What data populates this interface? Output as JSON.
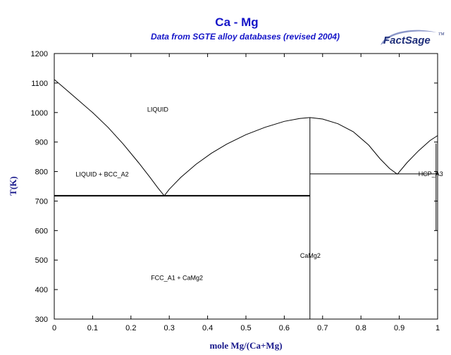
{
  "chart_data": {
    "type": "line",
    "title": "Ca - Mg",
    "subtitle": "Data from SGTE alloy databases (revised 2004)",
    "xlabel": "mole Mg/(Ca+Mg)",
    "ylabel": "T(K)",
    "xlim": [
      0,
      1
    ],
    "ylim": [
      300,
      1200
    ],
    "x_ticks": [
      0,
      0.1,
      0.2,
      0.3,
      0.4,
      0.5,
      0.6,
      0.7,
      0.8,
      0.9,
      1
    ],
    "x_tick_labels": [
      "0",
      "0.1",
      "0.2",
      "0.3",
      "0.4",
      "0.5",
      "0.6",
      "0.7",
      "0.8",
      "0.9",
      "1"
    ],
    "y_ticks": [
      300,
      400,
      500,
      600,
      700,
      800,
      900,
      1000,
      1100,
      1200
    ],
    "y_tick_labels": [
      "300",
      "400",
      "500",
      "600",
      "700",
      "800",
      "900",
      "1000",
      "1100",
      "1200"
    ],
    "grid": false,
    "series": [
      {
        "x": [
          0,
          0.02,
          0.06,
          0.1,
          0.14,
          0.18,
          0.22,
          0.25,
          0.27,
          0.287
        ],
        "y": [
          1112,
          1090,
          1045,
          1000,
          950,
          893,
          830,
          780,
          745,
          718
        ]
      },
      {
        "x": [
          0.287,
          0.3,
          0.33,
          0.37,
          0.41,
          0.45,
          0.5,
          0.55,
          0.6,
          0.64,
          0.667
        ],
        "y": [
          718,
          740,
          780,
          825,
          862,
          893,
          925,
          950,
          970,
          980,
          983
        ]
      },
      {
        "x": [
          0.667,
          0.7,
          0.74,
          0.78,
          0.82,
          0.85,
          0.875,
          0.895
        ],
        "y": [
          983,
          978,
          962,
          935,
          890,
          843,
          810,
          791
        ]
      },
      {
        "x": [
          0.895,
          0.92,
          0.95,
          0.98,
          1.0
        ],
        "y": [
          791,
          830,
          870,
          905,
          922
        ]
      },
      {
        "x": [
          0,
          0.667
        ],
        "y": [
          718,
          718
        ]
      },
      {
        "x": [
          0.667,
          0.667
        ],
        "y": [
          300,
          983
        ]
      },
      {
        "x": [
          0.667,
          1.0
        ],
        "y": [
          792,
          792
        ]
      },
      {
        "x": [
          0.996,
          0.996
        ],
        "y": [
          600,
          895
        ]
      }
    ],
    "annotations": [
      {
        "text": "LIQUID",
        "x": 0.27,
        "y": 1010
      },
      {
        "text": "LIQUID + BCC_A2",
        "x": 0.125,
        "y": 790
      },
      {
        "text": "HCP_A3",
        "x": 0.982,
        "y": 792
      },
      {
        "text": "CaMg2",
        "x": 0.668,
        "y": 515
      },
      {
        "text": "FCC_A1 + CaMg2",
        "x": 0.32,
        "y": 440
      }
    ]
  },
  "logo": {
    "main": "FactSage",
    "mark": "TM"
  }
}
